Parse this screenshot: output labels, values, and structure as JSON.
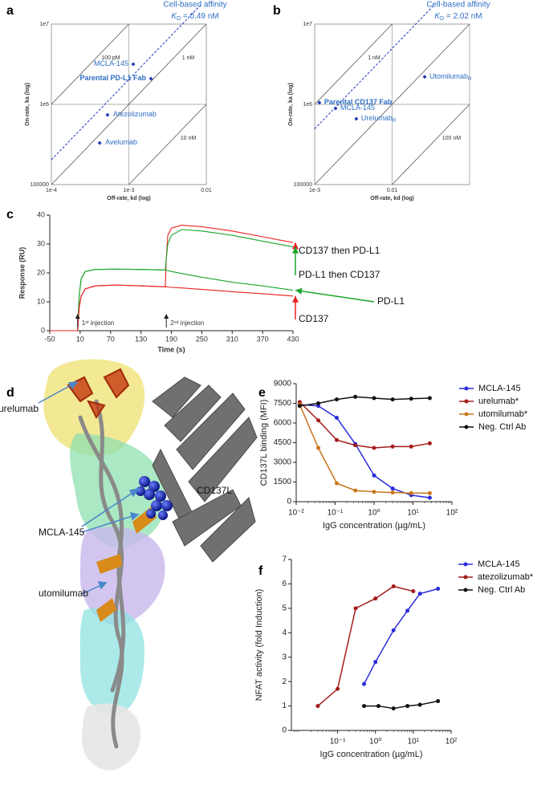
{
  "chart_data": [
    {
      "panel": "a",
      "type": "scatter",
      "xlabel": "Off-rate, kd (log)",
      "ylabel": "On-rate, ka (log)",
      "xscale": "log",
      "yscale": "log",
      "xlim": [
        0.0001,
        0.01
      ],
      "ylim": [
        100000,
        10000000
      ],
      "xticks": [
        {
          "value": 0.0001,
          "label": "1e-4"
        },
        {
          "value": 0.001,
          "label": "1e-3"
        },
        0.01
      ],
      "yticks": [
        100000,
        {
          "value": 1000000,
          "label": "1e6"
        },
        {
          "value": 10000000,
          "label": "1e7"
        }
      ],
      "grid": true,
      "color": "#2f6fc4",
      "iso_lines": [
        {
          "value": 1e-10,
          "label": "100 pM"
        },
        {
          "value": 1e-09,
          "label": "1 nM"
        },
        {
          "value": 1e-08,
          "label": "10 nM"
        }
      ],
      "reference": {
        "title": "Cell-based affinity",
        "symbol": "K",
        "subscript": "D",
        "label": " = 0.49 nM",
        "value": 4.9e-10
      },
      "points": [
        {
          "name": "MCLA-145",
          "x": 0.00114,
          "y": 3160000
        },
        {
          "name": "Parental PD-L1 Fab",
          "x": 0.00193,
          "y": 2090000,
          "emphasis": true
        },
        {
          "name": "Atezolizumab",
          "x": 0.00053,
          "y": 740000
        },
        {
          "name": "Avelumab",
          "x": 0.00042,
          "y": 330000
        }
      ]
    },
    {
      "panel": "b",
      "type": "scatter",
      "xlabel": "Off-rate, kd (log)",
      "ylabel": "On-rate, ka (log)",
      "xscale": "log",
      "yscale": "log",
      "xlim": [
        0.001,
        0.1
      ],
      "ylim": [
        100000,
        10000000
      ],
      "xticks": [
        {
          "value": 0.001,
          "label": "1e-3"
        },
        0.01
      ],
      "yticks": [
        100000,
        {
          "value": 1000000,
          "label": "1e6"
        },
        {
          "value": 10000000,
          "label": "1e7"
        }
      ],
      "grid": true,
      "color": "#2f6fc4",
      "iso_lines": [
        {
          "value": 1e-09,
          "label": "1 nM"
        },
        {
          "value": 1e-08,
          "label": null
        },
        {
          "value": 1e-07,
          "label": "100 nM"
        }
      ],
      "reference": {
        "title": "Cell-based affinity",
        "symbol": "K",
        "subscript": "D",
        "label": " = 2.02 nM",
        "value": 2.02e-09
      },
      "points": [
        {
          "name": "Parental CD137 Fab",
          "x": 0.00115,
          "y": 1050000,
          "emphasis": true
        },
        {
          "name": "MCLA-145",
          "x": 0.00186,
          "y": 890000
        },
        {
          "name": "Urelumab",
          "subscript": "R",
          "x": 0.00345,
          "y": 660000
        },
        {
          "name": "Utomilumab",
          "subscript": "R",
          "x": 0.0263,
          "y": 2200000
        }
      ]
    },
    {
      "panel": "c",
      "type": "line",
      "xlabel": "Time (s)",
      "ylabel": "Response (RU)",
      "xlim": [
        -50,
        430
      ],
      "ylim": [
        0,
        40
      ],
      "xticks": [
        -50,
        10,
        70,
        130,
        190,
        250,
        310,
        370,
        430
      ],
      "yticks": [
        0,
        10,
        20,
        30,
        40
      ],
      "x": [
        -50,
        0,
        5,
        8,
        12,
        20,
        40,
        80,
        130,
        178,
        180,
        183,
        190,
        210,
        250,
        310,
        370,
        430
      ],
      "series": [
        {
          "name": "CD137 then PD-L1",
          "color": "#e82020",
          "values": [
            0,
            0,
            0,
            8,
            12,
            14.5,
            15.5,
            15.8,
            15.5,
            15.2,
            25,
            33,
            35.5,
            36.5,
            36,
            34.5,
            32.5,
            30.5
          ]
        },
        {
          "name": "PD-L1 then CD137",
          "color": "#1aa52a",
          "values": [
            0,
            0,
            0,
            12,
            18,
            20.5,
            21.2,
            21.3,
            21.2,
            21,
            25,
            30,
            33,
            35,
            34.5,
            33,
            31,
            29
          ]
        },
        {
          "name": "PD-L1",
          "color": "#1aa52a",
          "values": [
            0,
            0,
            0,
            12,
            18,
            20.5,
            21.2,
            21.3,
            21.2,
            21,
            20.9,
            20.8,
            20.5,
            19.8,
            18.5,
            16.8,
            15.5,
            14
          ]
        },
        {
          "name": "CD137",
          "color": "#e82020",
          "values": [
            0,
            0,
            0,
            8,
            12,
            14.5,
            15.5,
            15.8,
            15.5,
            15.2,
            15.2,
            15.1,
            15,
            14.8,
            14.3,
            13.5,
            12.8,
            12
          ]
        }
      ],
      "annotations": [
        {
          "text": "1ˢᵗ injection",
          "x": 5
        },
        {
          "text": "2ⁿᵈ injection",
          "x": 180
        }
      ]
    },
    {
      "panel": "e",
      "type": "line",
      "markers": true,
      "legend": "upper right",
      "xlabel": "IgG concentration (µg/mL)",
      "ylabel": "CD137L binding (MFI)",
      "xscale": "log",
      "xlim": [
        0.01,
        100
      ],
      "ylim": [
        0,
        9000
      ],
      "xticks": [
        {
          "value": 0.01,
          "label": "10⁻²"
        },
        {
          "value": 0.1,
          "label": "10⁻¹"
        },
        {
          "value": 1,
          "label": "10⁰"
        },
        {
          "value": 10,
          "label": "10¹"
        },
        {
          "value": 100,
          "label": "10²"
        }
      ],
      "yticks": [
        0,
        1500,
        3000,
        4500,
        6000,
        7500,
        9000
      ],
      "x": [
        0.0123,
        0.037,
        0.11,
        0.33,
        1,
        3,
        9,
        27
      ],
      "series": [
        {
          "name": "MCLA-145",
          "color": "#2b2bdc",
          "values": [
            7400,
            7300,
            6400,
            4400,
            2000,
            1000,
            500,
            300
          ]
        },
        {
          "name": "urelumab*",
          "color": "#a51b1b",
          "values": [
            7600,
            6200,
            4700,
            4300,
            4100,
            4200,
            4200,
            4450
          ]
        },
        {
          "name": "utomilumab*",
          "color": "#c8761a",
          "values": [
            7400,
            4100,
            1400,
            850,
            750,
            700,
            650,
            650
          ]
        },
        {
          "name": "Neg. Ctrl Ab",
          "color": "#111111",
          "values": [
            7300,
            7500,
            7800,
            8000,
            7900,
            7800,
            7850,
            7900
          ]
        }
      ]
    },
    {
      "panel": "f",
      "type": "line",
      "markers": true,
      "legend": "upper right",
      "xlabel": "IgG concentration (µg/mL)",
      "ylabel": "NFAT activity (fold Induction)",
      "xscale": "log",
      "xlim": [
        0.006,
        100
      ],
      "ylim": [
        0,
        7
      ],
      "xticks": [
        {
          "value": 0.1,
          "label": "10⁻¹"
        },
        {
          "value": 1,
          "label": "10⁰"
        },
        {
          "value": 10,
          "label": "10¹"
        },
        {
          "value": 100,
          "label": "10²"
        }
      ],
      "yticks": [
        0,
        1,
        2,
        3,
        4,
        5,
        6,
        7
      ],
      "series": [
        {
          "name": "MCLA-145",
          "color": "#2b2bdc",
          "x": [
            0.5,
            1,
            3,
            7,
            15,
            45
          ],
          "values": [
            1.9,
            2.8,
            4.1,
            4.9,
            5.6,
            5.8
          ]
        },
        {
          "name": "atezolizumab*",
          "color": "#a51b1b",
          "x": [
            0.03,
            0.1,
            0.3,
            1,
            3,
            10
          ],
          "values": [
            1.0,
            1.7,
            5.0,
            5.4,
            5.9,
            5.7
          ]
        },
        {
          "name": "Neg. Ctrl Ab",
          "color": "#111111",
          "x": [
            0.5,
            1.2,
            3,
            7,
            15,
            45
          ],
          "values": [
            1.0,
            1.0,
            0.9,
            1.0,
            1.05,
            1.2
          ]
        }
      ]
    }
  ],
  "structure": {
    "panel": "d",
    "labels": [
      "urelumab",
      "CD137L",
      "MCLA-145",
      "utomilumab"
    ]
  }
}
